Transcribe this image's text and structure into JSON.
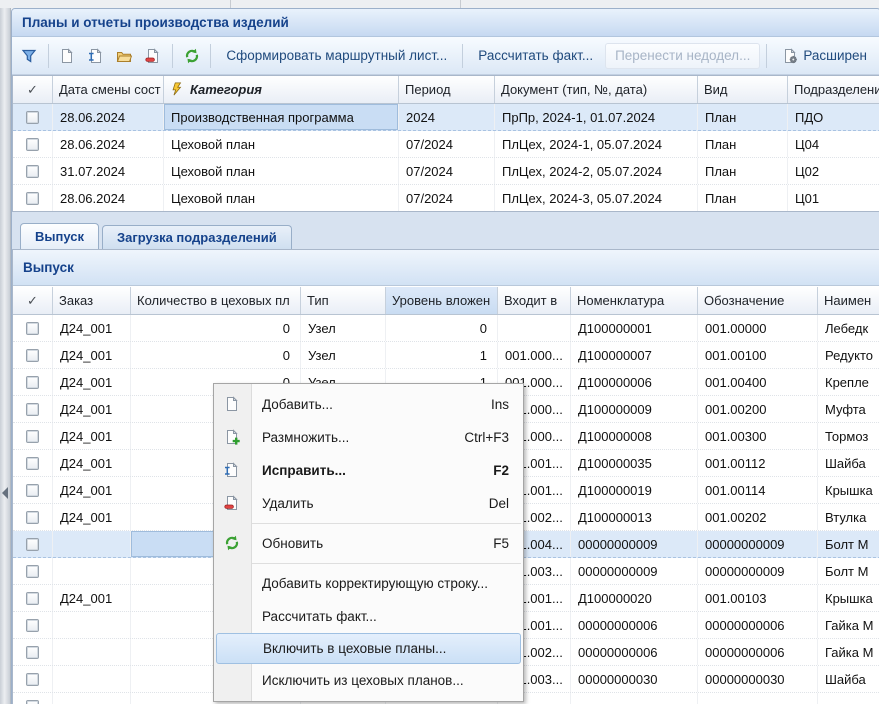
{
  "window_title": "Планы и отчеты производства изделий",
  "toolbar": {
    "icon_buttons": [
      "filter-icon",
      "new-document-icon",
      "edit-document-icon",
      "open-folder-icon",
      "delete-document-icon",
      "refresh-icon"
    ],
    "format_route_label": "Сформировать маршрутный лист...",
    "calc_fact_label": "Рассчитать факт...",
    "move_backlog_label": "Перенести недодел...",
    "extended_label": "Расширен",
    "extended_icon": "extended-report-icon"
  },
  "plans_grid": {
    "check_header": "✓",
    "columns": {
      "date": "Дата смены сост",
      "category": "Категория",
      "period": "Период",
      "document": "Документ (тип, №, дата)",
      "kind": "Вид",
      "division": "Подразделения"
    },
    "category_filter_icon": "filter-lightning-icon",
    "rows": [
      {
        "date": "28.06.2024",
        "category": "Производственная программа",
        "period": "2024",
        "document": "ПрПр, 2024-1, 01.07.2024",
        "kind": "План",
        "division": "ПДО",
        "selected": true
      },
      {
        "date": "28.06.2024",
        "category": "Цеховой план",
        "period": "07/2024",
        "document": "ПлЦех, 2024-1, 05.07.2024",
        "kind": "План",
        "division": "Ц04",
        "selected": false
      },
      {
        "date": "31.07.2024",
        "category": "Цеховой план",
        "period": "07/2024",
        "document": "ПлЦех, 2024-2, 05.07.2024",
        "kind": "План",
        "division": "Ц02",
        "selected": false
      },
      {
        "date": "28.06.2024",
        "category": "Цеховой план",
        "period": "07/2024",
        "document": "ПлЦех, 2024-3, 05.07.2024",
        "kind": "План",
        "division": "Ц01",
        "selected": false
      }
    ]
  },
  "tabs": {
    "output": "Выпуск",
    "load": "Загрузка подразделений"
  },
  "section_title": "Выпуск",
  "output_grid": {
    "check_header": "✓",
    "columns": {
      "order": "Заказ",
      "qty": "Количество в цеховых пл",
      "type": "Тип",
      "level": "Уровень вложен",
      "parent": "Входит в",
      "nomenclature": "Номенклатура",
      "designation": "Обозначение",
      "name": "Наимен"
    },
    "rows": [
      {
        "order": "Д24_001",
        "qty": "0",
        "type": "Узел",
        "level": "0",
        "parent": "",
        "nomenclature": "Д100000001",
        "designation": "001.00000",
        "name": "Лебедк",
        "selected": false
      },
      {
        "order": "Д24_001",
        "qty": "0",
        "type": "Узел",
        "level": "1",
        "parent": "001.000...",
        "nomenclature": "Д100000007",
        "designation": "001.00100",
        "name": "Редукто",
        "selected": false
      },
      {
        "order": "Д24_001",
        "qty": "0",
        "type": "Узел",
        "level": "1",
        "parent": "001.000...",
        "nomenclature": "Д100000006",
        "designation": "001.00400",
        "name": "Крепле",
        "selected": false
      },
      {
        "order": "Д24_001",
        "qty": "",
        "type": "",
        "level": "",
        "parent": "001.000...",
        "nomenclature": "Д100000009",
        "designation": "001.00200",
        "name": "Муфта",
        "selected": false
      },
      {
        "order": "Д24_001",
        "qty": "",
        "type": "",
        "level": "",
        "parent": "001.000...",
        "nomenclature": "Д100000008",
        "designation": "001.00300",
        "name": "Тормоз",
        "selected": false
      },
      {
        "order": "Д24_001",
        "qty": "",
        "type": "",
        "level": "",
        "parent": "001.001...",
        "nomenclature": "Д100000035",
        "designation": "001.00112",
        "name": "Шайба",
        "selected": false
      },
      {
        "order": "Д24_001",
        "qty": "",
        "type": "",
        "level": "",
        "parent": "001.001...",
        "nomenclature": "Д100000019",
        "designation": "001.00114",
        "name": "Крышка",
        "selected": false
      },
      {
        "order": "Д24_001",
        "qty": "",
        "type": "",
        "level": "",
        "parent": "001.002...",
        "nomenclature": "Д100000013",
        "designation": "001.00202",
        "name": "Втулка",
        "selected": false
      },
      {
        "order": "",
        "qty": "",
        "type": "",
        "level": "",
        "parent": "001.004...",
        "nomenclature": "00000000009",
        "designation": "00000000009",
        "name": "Болт М",
        "selected": true
      },
      {
        "order": "",
        "qty": "",
        "type": "",
        "level": "",
        "parent": "001.003...",
        "nomenclature": "00000000009",
        "designation": "00000000009",
        "name": "Болт М",
        "selected": false
      },
      {
        "order": "Д24_001",
        "qty": "",
        "type": "",
        "level": "",
        "parent": "001.001...",
        "nomenclature": "Д100000020",
        "designation": "001.00103",
        "name": "Крышка",
        "selected": false
      },
      {
        "order": "",
        "qty": "",
        "type": "",
        "level": "",
        "parent": "001.001...",
        "nomenclature": "00000000006",
        "designation": "00000000006",
        "name": "Гайка М",
        "selected": false
      },
      {
        "order": "",
        "qty": "",
        "type": "",
        "level": "",
        "parent": "001.002...",
        "nomenclature": "00000000006",
        "designation": "00000000006",
        "name": "Гайка М",
        "selected": false
      },
      {
        "order": "",
        "qty": "",
        "type": "",
        "level": "",
        "parent": "001.003...",
        "nomenclature": "00000000030",
        "designation": "00000000030",
        "name": "Шайба",
        "selected": false
      },
      {
        "order": "",
        "qty": "",
        "type": "",
        "level": "",
        "parent": "",
        "nomenclature": "",
        "designation": "",
        "name": "",
        "selected": false
      }
    ]
  },
  "context_menu": {
    "items": [
      {
        "label": "Добавить...",
        "shortcut": "Ins",
        "icon": "new-document-icon"
      },
      {
        "label": "Размножить...",
        "shortcut": "Ctrl+F3",
        "icon": "copy-document-icon"
      },
      {
        "label": "Исправить...",
        "shortcut": "F2",
        "icon": "edit-document-icon",
        "bold": true
      },
      {
        "label": "Удалить",
        "shortcut": "Del",
        "icon": "delete-document-icon"
      },
      {
        "separator": true
      },
      {
        "label": "Обновить",
        "shortcut": "F5",
        "icon": "refresh-icon"
      },
      {
        "separator": true
      },
      {
        "label": "Добавить корректирующую строку...",
        "shortcut": ""
      },
      {
        "label": "Рассчитать факт...",
        "shortcut": ""
      },
      {
        "label": "Включить в цеховые планы...",
        "shortcut": "",
        "highlighted": true
      },
      {
        "label": "Исключить из цеховых планов...",
        "shortcut": ""
      }
    ]
  },
  "colors": {
    "title_text": "#15428b",
    "selected_row": "#dce9f8",
    "focused_cell": "#c9ddf4",
    "menu_highlight_border": "#9fc0e2",
    "disabled_text": "#a7b4c6"
  }
}
